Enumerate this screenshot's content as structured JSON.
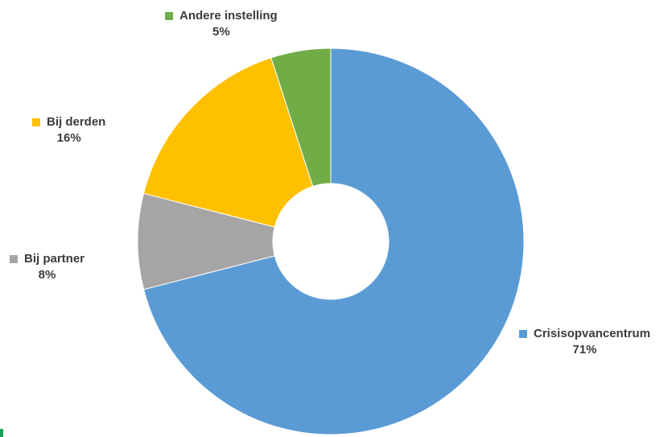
{
  "chart_data": {
    "type": "pie",
    "donut": true,
    "title": "",
    "categories": [
      "Crisisopvancentrum",
      "Bij partner",
      "Bij derden",
      "Andere instelling"
    ],
    "values": [
      71,
      8,
      16,
      5
    ],
    "percent_labels": [
      "71%",
      "8%",
      "16%",
      "5%"
    ],
    "colors": [
      "#5b9bd5",
      "#a5a5a5",
      "#ffc000",
      "#70ad47"
    ],
    "legend": "labels-beside-slices"
  }
}
